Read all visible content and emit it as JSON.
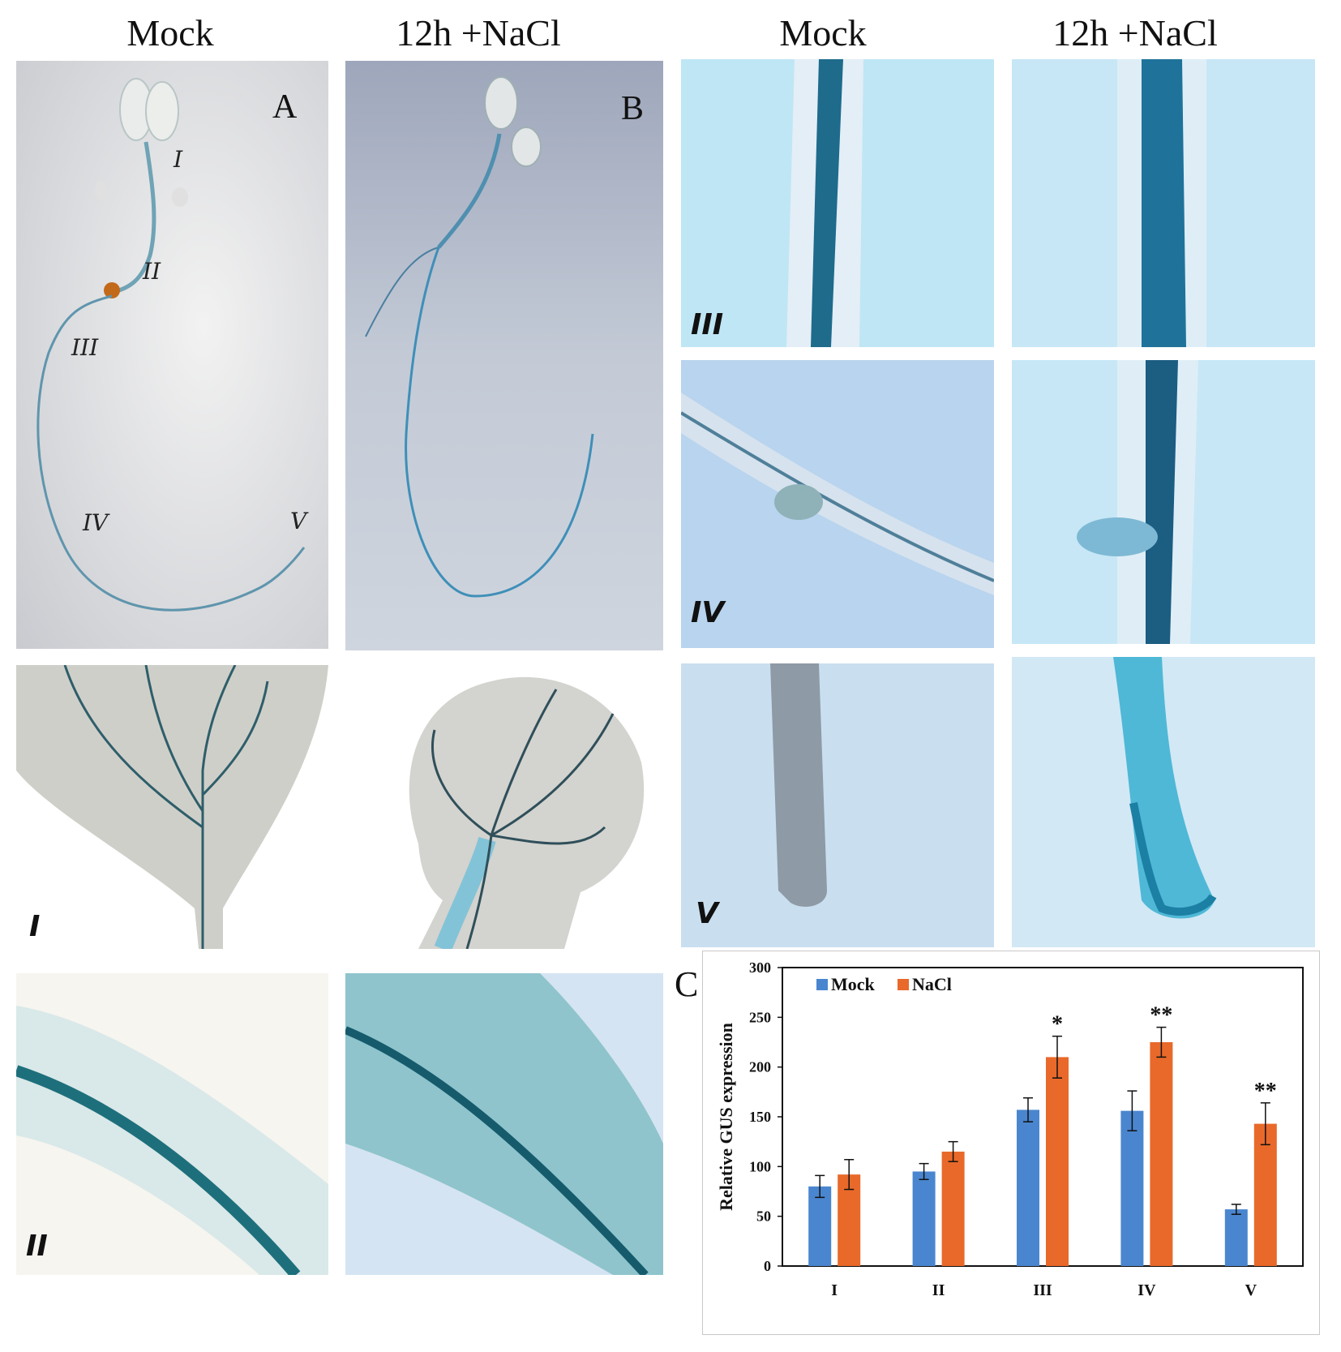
{
  "column_titles": {
    "left_mock": "Mock",
    "left_nacl": "12h +NaCl",
    "right_mock": "Mock",
    "right_nacl": "12h +NaCl"
  },
  "panel_letters": {
    "a": "A",
    "b": "B",
    "c": "C"
  },
  "seedling_region_labels": [
    "I",
    "II",
    "III",
    "IV",
    "V"
  ],
  "row_labels": {
    "cotyledon": "I",
    "hypocotyl": "II",
    "root_upper": "III",
    "lateral_root": "IV",
    "root_tip": "V"
  },
  "colors": {
    "gus_blue": "#1e6f8c",
    "mock_bar": "#4a86cf",
    "nacl_bar": "#e8692a",
    "plate_bg": "#c9cfd6"
  },
  "chart_data": {
    "type": "bar",
    "categories": [
      "I",
      "II",
      "III",
      "IV",
      "V"
    ],
    "series": [
      {
        "name": "Mock",
        "values": [
          80,
          95,
          157,
          156,
          57
        ],
        "errors": [
          11,
          8,
          12,
          20,
          5
        ],
        "color": "#4a86cf"
      },
      {
        "name": "NaCl",
        "values": [
          92,
          115,
          210,
          225,
          143
        ],
        "errors": [
          15,
          10,
          21,
          15,
          21
        ],
        "color": "#e8692a"
      }
    ],
    "significance": [
      "",
      "",
      "*",
      "**",
      "**"
    ],
    "ylabel": "Relative GUS expression",
    "xlabel": "",
    "ylim": [
      0,
      300
    ],
    "yticks": [
      0,
      50,
      100,
      150,
      200,
      250,
      300
    ],
    "legend": "top-left",
    "grid": false
  }
}
